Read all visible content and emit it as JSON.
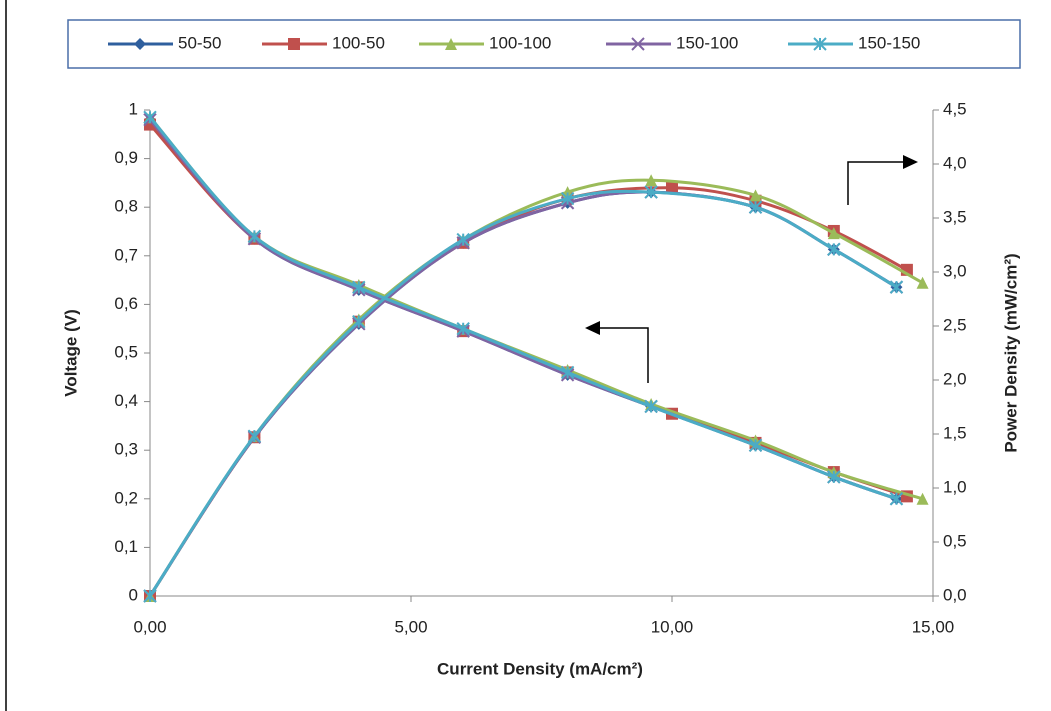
{
  "chart_data": {
    "type": "line",
    "x_label": "Current Density (mA/cm²)",
    "y_label": "Voltage (V)",
    "y2_label": "Power Density (mW/cm²)",
    "xlim": [
      0,
      15
    ],
    "xticks": [
      {
        "value": 0,
        "label": "0,00"
      },
      {
        "value": 5,
        "label": "5,00"
      },
      {
        "value": 10,
        "label": "10,00"
      },
      {
        "value": 15,
        "label": "15,00"
      }
    ],
    "ylim": [
      0,
      1
    ],
    "yticks": [
      0,
      {
        "value": 0.1,
        "label": "0,1"
      },
      {
        "value": 0.2,
        "label": "0,2"
      },
      {
        "value": 0.3,
        "label": "0,3"
      },
      {
        "value": 0.4,
        "label": "0,4"
      },
      {
        "value": 0.5,
        "label": "0,5"
      },
      {
        "value": 0.6,
        "label": "0,6"
      },
      {
        "value": 0.7,
        "label": "0,7"
      },
      {
        "value": 0.8,
        "label": "0,8"
      },
      {
        "value": 0.9,
        "label": "0,9"
      },
      1
    ],
    "y2lim": [
      0,
      4.5
    ],
    "y2ticks": [
      {
        "value": 0,
        "label": "0,0"
      },
      {
        "value": 0.5,
        "label": "0,5"
      },
      {
        "value": 1,
        "label": "1,0"
      },
      {
        "value": 1.5,
        "label": "1,5"
      },
      {
        "value": 2,
        "label": "2,0"
      },
      {
        "value": 2.5,
        "label": "2,5"
      },
      {
        "value": 3,
        "label": "3,0"
      },
      {
        "value": 3.5,
        "label": "3,5"
      },
      {
        "value": 4,
        "label": "4,0"
      },
      {
        "value": 4.5,
        "label": "4,5"
      }
    ],
    "legend": "top",
    "series": [
      {
        "name": "50-50",
        "color": "#2f5f9e",
        "marker": "diamond",
        "x": [
          0,
          2,
          4,
          6,
          8,
          9.6,
          11.6,
          13.1,
          14.3
        ],
        "values": [
          0.98,
          0.735,
          0.63,
          0.545,
          0.455,
          0.39,
          0.31,
          0.245,
          0.2
        ],
        "values_y2": [
          0,
          1.47,
          2.52,
          3.27,
          3.64,
          3.74,
          3.6,
          3.21,
          2.86
        ]
      },
      {
        "name": "100-50",
        "color": "#c0504d",
        "marker": "square",
        "x": [
          0,
          2,
          4,
          6,
          8,
          10,
          11.6,
          13.1,
          14.5
        ],
        "values": [
          0.97,
          0.735,
          0.635,
          0.545,
          0.46,
          0.375,
          0.315,
          0.255,
          0.205
        ],
        "values_y2": [
          0,
          1.47,
          2.54,
          3.27,
          3.68,
          3.78,
          3.66,
          3.38,
          3.02
        ]
      },
      {
        "name": "100-100",
        "color": "#9bbb59",
        "marker": "triangle",
        "x": [
          0,
          2,
          4,
          6,
          8,
          9.6,
          11.6,
          13.1,
          14.8
        ],
        "values": [
          0.985,
          0.74,
          0.64,
          0.55,
          0.465,
          0.395,
          0.32,
          0.255,
          0.2
        ],
        "values_y2": [
          0,
          1.48,
          2.56,
          3.3,
          3.74,
          3.85,
          3.71,
          3.36,
          2.9
        ]
      },
      {
        "name": "150-100",
        "color": "#8064a2",
        "marker": "x",
        "x": [
          0,
          2,
          4,
          6,
          8,
          9.6,
          11.6,
          13.1,
          14.3
        ],
        "values": [
          0.98,
          0.735,
          0.63,
          0.545,
          0.455,
          0.39,
          0.31,
          0.245,
          0.2
        ],
        "values_y2": [
          0,
          1.47,
          2.52,
          3.27,
          3.64,
          3.74,
          3.6,
          3.21,
          2.86
        ]
      },
      {
        "name": "150-150",
        "color": "#4bacc6",
        "marker": "star",
        "x": [
          0,
          2,
          4,
          6,
          8,
          9.6,
          11.6,
          13.1,
          14.3
        ],
        "values": [
          0.985,
          0.74,
          0.635,
          0.55,
          0.46,
          0.39,
          0.31,
          0.245,
          0.2
        ],
        "values_y2": [
          0,
          1.48,
          2.54,
          3.3,
          3.68,
          3.74,
          3.6,
          3.21,
          2.86
        ]
      }
    ]
  }
}
